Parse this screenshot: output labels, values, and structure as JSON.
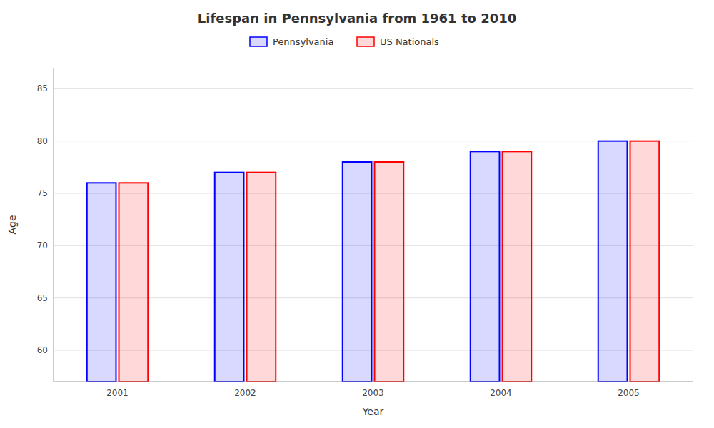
{
  "chart_data": {
    "type": "bar",
    "title": "Lifespan in Pennsylvania from 1961 to 2010",
    "x_label": "Year",
    "y_label": "Age",
    "categories": [
      "2001",
      "2002",
      "2003",
      "2004",
      "2005"
    ],
    "series": [
      {
        "name": "Pennsylvania",
        "color": "#0000ff",
        "values": [
          76,
          77,
          78,
          79,
          80
        ]
      },
      {
        "name": "US Nationals",
        "color": "#ff0000",
        "values": [
          76,
          77,
          78,
          79,
          80
        ]
      }
    ],
    "ylim": [
      57,
      87
    ],
    "yticks": [
      60,
      65,
      70,
      75,
      80,
      85
    ],
    "grid": true,
    "legend": "top"
  }
}
